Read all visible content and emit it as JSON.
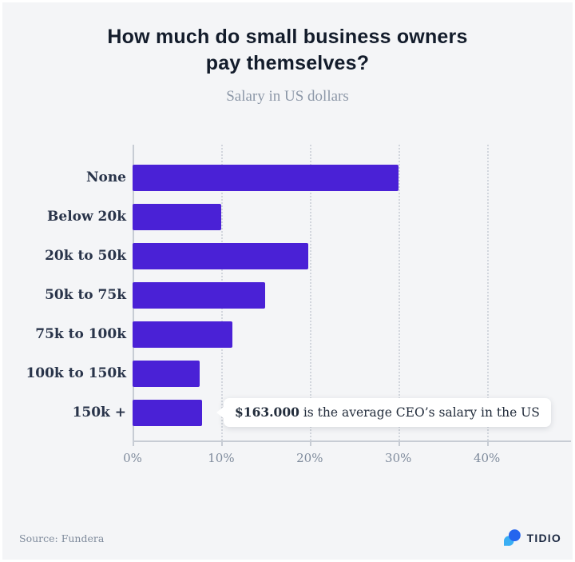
{
  "header": {
    "title_lines": [
      "How much do small business owners",
      "pay themselves?"
    ],
    "subtitle": "Salary in US dollars"
  },
  "chart_data": {
    "type": "bar",
    "orientation": "horizontal",
    "title": "How much do small business owners pay themselves?",
    "subtitle": "Salary in US dollars",
    "categories": [
      "None",
      "Below 20k",
      "20k to 50k",
      "50k to 75k",
      "75k to 100k",
      "100k to 150k",
      "150k +"
    ],
    "values": [
      30,
      10,
      19.8,
      15,
      11.3,
      7.6,
      7.8
    ],
    "unit": "%",
    "xticks": [
      0,
      10,
      20,
      30,
      40
    ],
    "xtick_labels": [
      "0%",
      "10%",
      "20%",
      "30%",
      "40%"
    ],
    "xmax": 49.5,
    "grid": "vertical-dotted",
    "legend": "none",
    "annotation": {
      "highlight": "$163.000",
      "rest": " is the average CEO’s salary in the US",
      "attached_to": "150k +"
    }
  },
  "footer": {
    "source": "Source: Fundera",
    "brand": "TIDIO"
  },
  "colors": {
    "background": "#f4f5f7",
    "bar": "#4a21d6",
    "title": "#131c2b",
    "muted_text": "#8d98a8",
    "axis_text": "#7f8b9c",
    "category_text": "#29344a",
    "gridline": "#d2d6dd",
    "axis_line": "#c7ccd4",
    "callout_bg": "#ffffff",
    "logo_dark_blue": "#2465ee",
    "logo_light_blue": "#3aaef3"
  }
}
